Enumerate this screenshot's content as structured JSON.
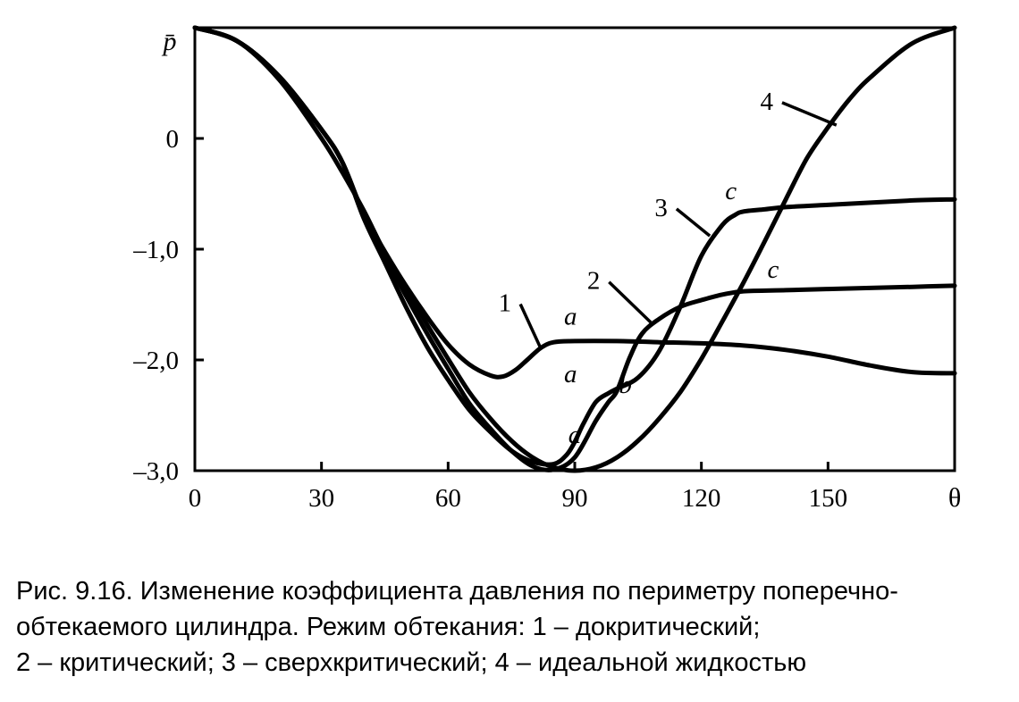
{
  "chart_data": {
    "type": "line",
    "ylabel": "p̄",
    "xlabel": "θ",
    "xlim": [
      0,
      180
    ],
    "ylim": [
      -3.0,
      1.0
    ],
    "x_ticks": [
      0,
      30,
      60,
      90,
      120,
      150
    ],
    "x_tick_labels": [
      "0",
      "30",
      "60",
      "90",
      "120",
      "150"
    ],
    "y_ticks": [
      0,
      -1.0,
      -2.0,
      -3.0
    ],
    "y_tick_labels": [
      "0",
      "–1,0",
      "–2,0",
      "–3,0"
    ],
    "grid": false,
    "series": [
      {
        "name": "1",
        "x": [
          0,
          10,
          20,
          30,
          35,
          40,
          45,
          50,
          55,
          60,
          65,
          70,
          73,
          76,
          79,
          82,
          85,
          90,
          100,
          110,
          120,
          130,
          140,
          150,
          160,
          170,
          180
        ],
        "y": [
          1.0,
          0.88,
          0.56,
          0.08,
          -0.22,
          -0.68,
          -1.02,
          -1.33,
          -1.61,
          -1.86,
          -2.04,
          -2.14,
          -2.15,
          -2.09,
          -1.99,
          -1.89,
          -1.84,
          -1.83,
          -1.83,
          -1.84,
          -1.85,
          -1.87,
          -1.91,
          -1.97,
          -2.05,
          -2.11,
          -2.12
        ]
      },
      {
        "name": "2",
        "x": [
          0,
          10,
          20,
          30,
          35,
          40,
          45,
          50,
          55,
          60,
          65,
          70,
          75,
          80,
          85,
          90,
          95,
          98,
          100,
          103,
          106,
          110,
          115,
          120,
          125,
          130,
          140,
          150,
          160,
          170,
          180
        ],
        "y": [
          1.0,
          0.88,
          0.56,
          0.08,
          -0.22,
          -0.7,
          -1.06,
          -1.42,
          -1.76,
          -2.08,
          -2.39,
          -2.62,
          -2.82,
          -2.96,
          -2.99,
          -2.88,
          -2.55,
          -2.38,
          -2.28,
          -1.98,
          -1.76,
          -1.63,
          -1.52,
          -1.46,
          -1.41,
          -1.38,
          -1.37,
          -1.36,
          -1.35,
          -1.34,
          -1.33
        ]
      },
      {
        "name": "3",
        "x": [
          0,
          10,
          20,
          30,
          35,
          40,
          45,
          50,
          55,
          60,
          65,
          70,
          75,
          80,
          85,
          88,
          90,
          92,
          95,
          98,
          100,
          105,
          110,
          115,
          120,
          125,
          128,
          130,
          135,
          140,
          150,
          160,
          170,
          180
        ],
        "y": [
          1.0,
          0.88,
          0.56,
          0.08,
          -0.22,
          -0.72,
          -1.12,
          -1.52,
          -1.88,
          -2.18,
          -2.45,
          -2.65,
          -2.82,
          -2.92,
          -2.94,
          -2.86,
          -2.74,
          -2.58,
          -2.38,
          -2.3,
          -2.26,
          -2.16,
          -1.92,
          -1.52,
          -1.06,
          -0.78,
          -0.69,
          -0.66,
          -0.64,
          -0.62,
          -0.6,
          -0.58,
          -0.56,
          -0.55
        ]
      },
      {
        "name": "4",
        "x": [
          0,
          10,
          20,
          30,
          35,
          40,
          45,
          50,
          55,
          60,
          65,
          70,
          75,
          80,
          85,
          90,
          95,
          100,
          105,
          110,
          115,
          120,
          125,
          130,
          135,
          140,
          145,
          150,
          155,
          160,
          170,
          180
        ],
        "y": [
          1.0,
          0.88,
          0.53,
          0.0,
          -0.31,
          -0.65,
          -1.03,
          -1.35,
          -1.68,
          -1.99,
          -2.29,
          -2.53,
          -2.73,
          -2.88,
          -2.97,
          -3.0,
          -2.97,
          -2.88,
          -2.73,
          -2.53,
          -2.29,
          -1.99,
          -1.65,
          -1.3,
          -0.93,
          -0.55,
          -0.18,
          0.1,
          0.35,
          0.55,
          0.86,
          1.0
        ]
      }
    ],
    "curve_labels": [
      {
        "text": "1",
        "anchor": [
          82,
          -1.9
        ],
        "label": [
          75,
          -1.48
        ]
      },
      {
        "text": "2",
        "anchor": [
          108,
          -1.66
        ],
        "label": [
          96,
          -1.28
        ]
      },
      {
        "text": "3",
        "anchor": [
          122,
          -0.88
        ],
        "label": [
          112,
          -0.62
        ]
      },
      {
        "text": "4",
        "anchor": [
          152,
          0.12
        ],
        "label": [
          137,
          0.34
        ]
      }
    ],
    "annotations": [
      {
        "text": "a",
        "at": [
          89,
          -1.68
        ]
      },
      {
        "text": "a",
        "at": [
          89,
          -2.2
        ]
      },
      {
        "text": "b",
        "at": [
          102,
          -2.3
        ]
      },
      {
        "text": "a",
        "at": [
          90,
          -2.75
        ]
      },
      {
        "text": "c",
        "at": [
          127,
          -0.55
        ]
      },
      {
        "text": "c",
        "at": [
          137,
          -1.26
        ]
      }
    ]
  },
  "caption": {
    "line1": "Рис. 9.16. Изменение коэффициента давления по периметру поперечно-",
    "line2": "обтекаемого цилиндра. Режим обтекания: 1 – докритический;",
    "line3": "2 – критический; 3 – сверхкритический; 4 – идеальной жидкостью"
  }
}
